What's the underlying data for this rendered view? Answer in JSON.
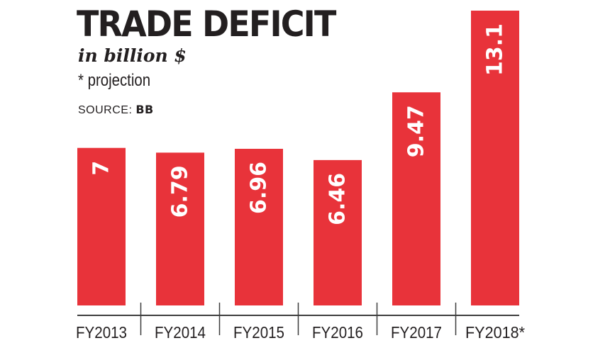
{
  "header": {
    "title": "TRADE DEFICIT",
    "subtitle": "in billion $",
    "note": "* projection",
    "source_label": "SOURCE:",
    "source_value": "BB"
  },
  "colors": {
    "bar": "#e8333a",
    "bar_label": "#ffffff",
    "axis": "#3d3d3d",
    "text": "#231f20"
  },
  "chart_data": {
    "type": "bar",
    "categories": [
      "FY2013",
      "FY2014",
      "FY2015",
      "FY2016",
      "FY2017",
      "FY2018*"
    ],
    "values": [
      7,
      6.79,
      6.96,
      6.46,
      9.47,
      13.1
    ],
    "value_labels": [
      "7",
      "6.79",
      "6.96",
      "6.46",
      "9.47",
      "13.1"
    ],
    "title": "TRADE DEFICIT",
    "subtitle": "in billion $",
    "ylim": [
      0,
      13.1
    ],
    "grid": false,
    "legend": "none",
    "data_labels": "inside bar, rotated vertical"
  }
}
